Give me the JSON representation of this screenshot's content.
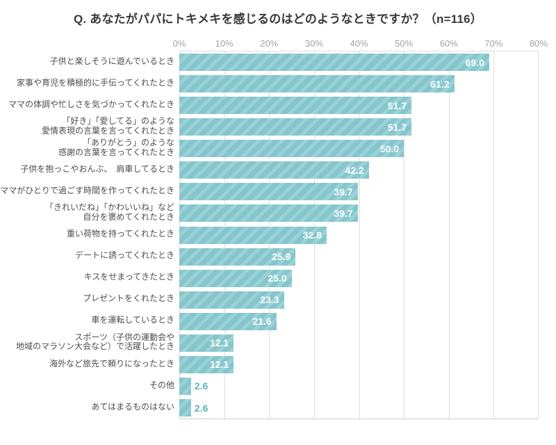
{
  "chart_data": {
    "type": "bar",
    "orientation": "horizontal",
    "title": "Q. あなたがパパにトキメキを感じるのはどのようなときですか？（n=116）",
    "sample_size": 116,
    "categories": [
      "子供と楽しそうに遊んでいるとき",
      "家事や育児を積極的に手伝ってくれたとき",
      "ママの体調や忙しさを気づかってくれたとき",
      "「好き」「愛してる」のような\n愛情表現の言葉を言ってくれたとき",
      "「ありがとう」のような\n感謝の言葉を言ってくれたとき",
      "子供を抱っこやおんぶ、　肩車してるとき",
      "ママがひとりで過ごす時間を作ってくれたとき",
      "「きれいだね」「かわいいね」など\n自分を褒めてくれたとき",
      "重い荷物を持ってくれたとき",
      "デートに誘ってくれたとき",
      "キスをせまってきたとき",
      "プレゼントをくれたとき",
      "車を運転しているとき",
      "スポーツ（子供の運動会や\n地域のマラソン大会など）で活躍したとき",
      "海外など旅先で頼りになったとき",
      "その他",
      "あてはまるものはない"
    ],
    "values": [
      69.0,
      61.2,
      51.7,
      51.7,
      50.0,
      42.2,
      39.7,
      39.7,
      32.8,
      25.9,
      25.0,
      23.3,
      21.6,
      12.1,
      12.1,
      2.6,
      2.6
    ],
    "value_labels": [
      "69.0",
      "61.2",
      "51.7",
      "51.7",
      "50.0",
      "42.2",
      "39.7",
      "39.7",
      "32.8",
      "25.9",
      "25.0",
      "23.3",
      "21.6",
      "12.1",
      "12.1",
      "2.6",
      "2.6"
    ],
    "xlim": [
      0,
      80
    ],
    "x_ticks": [
      "0%",
      "10%",
      "20%",
      "30%",
      "40%",
      "50%",
      "60%",
      "70%",
      "80%"
    ],
    "grid": true,
    "legend": false,
    "colors": {
      "bar_stripe_dark": "#85c6cc",
      "bar_stripe_light": "#9bd2d7",
      "value_inside": "#ffffff",
      "value_outside": "#58b4bd",
      "tick_label": "#a3a3a3",
      "category_label": "#4d4d4d",
      "title": "#383838",
      "gridline": "#dcdcdc"
    }
  }
}
